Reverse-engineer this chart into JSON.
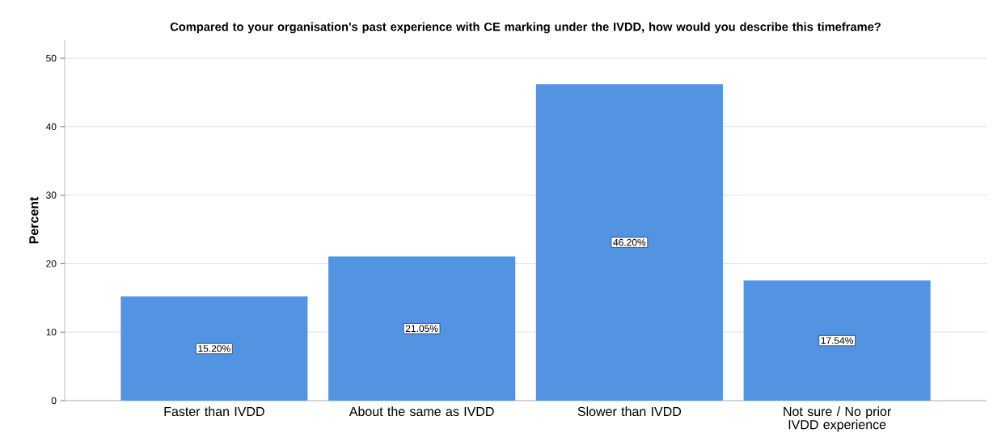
{
  "chart_data": {
    "type": "bar",
    "title": "Compared to your organisation's past experience with CE marking under the IVDD, how would you describe this timeframe?",
    "ylabel": "Percent",
    "categories": [
      "Faster than IVDD",
      "About the same as IVDD",
      "Slower than IVDD",
      "Not sure / No prior IVDD experience"
    ],
    "values": [
      15.2,
      21.05,
      46.2,
      17.54
    ],
    "value_labels": [
      "15.20%",
      "21.05%",
      "46.20%",
      "17.54%"
    ],
    "color": "#5294e2",
    "ylim": [
      0,
      52.6
    ],
    "yticks": [
      0,
      10,
      20,
      30,
      40,
      50
    ],
    "grid": "y"
  }
}
